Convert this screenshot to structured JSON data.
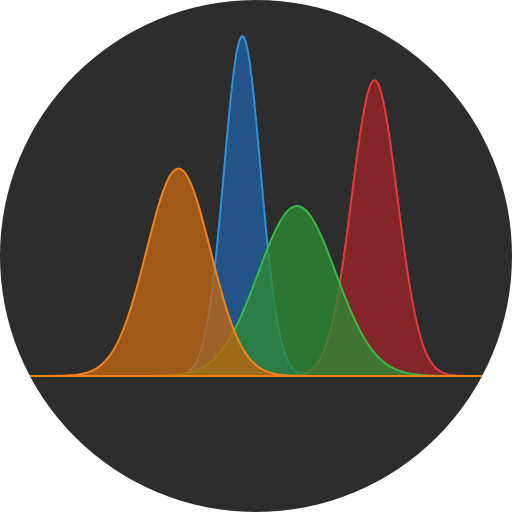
{
  "icon": {
    "name": "overlapping-distribution-curves-icon",
    "background_color": "#2d2d2d",
    "curves": [
      {
        "name": "blue-curve",
        "stroke": "#2f8fd8",
        "fill": "#1f5fa0",
        "mean": 0.47,
        "std": 0.04,
        "height": 1.0
      },
      {
        "name": "red-curve",
        "stroke": "#e23b3b",
        "fill": "#9b2328",
        "mean": 0.76,
        "std": 0.05,
        "height": 0.87
      },
      {
        "name": "green-curve",
        "stroke": "#37b847",
        "fill": "#2c8a33",
        "mean": 0.59,
        "std": 0.085,
        "height": 0.5
      },
      {
        "name": "orange-curve",
        "stroke": "#f0821d",
        "fill": "#c0650f",
        "mean": 0.33,
        "std": 0.07,
        "height": 0.61
      }
    ]
  }
}
